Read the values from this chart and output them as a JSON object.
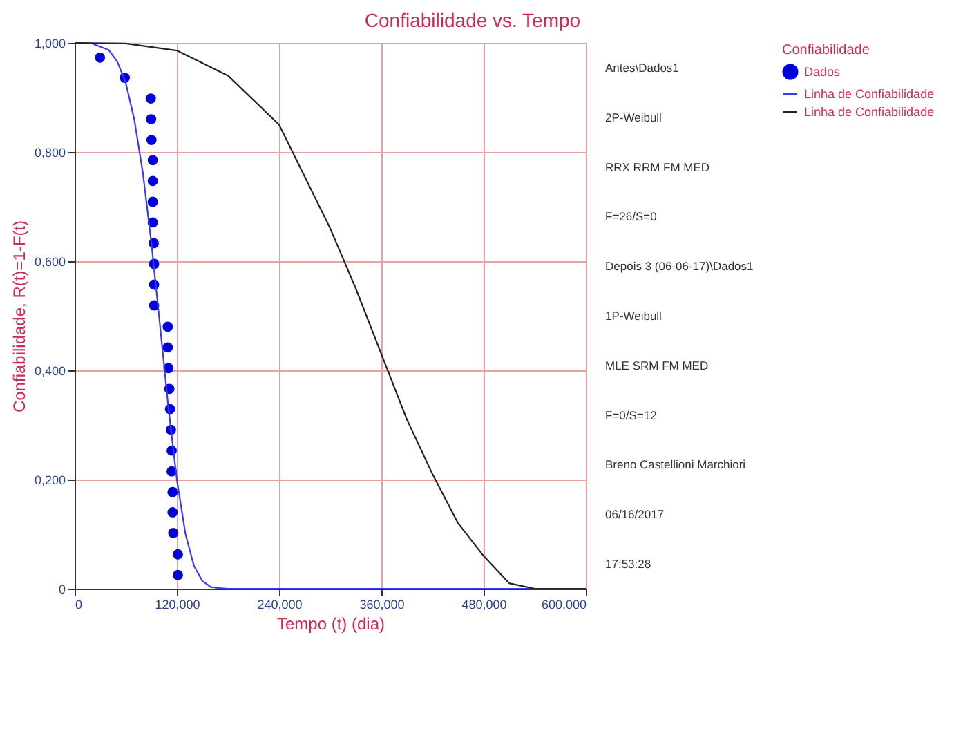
{
  "chart_data": {
    "type": "scatter",
    "title": "Confiabilidade vs. Tempo",
    "xlabel": "Tempo (t) (dia)",
    "ylabel": "Confiabilidade, R(t)=1-F(t)",
    "legend_title": "Confiabilidade",
    "legend": "right",
    "grid": true,
    "xlim": [
      0,
      600
    ],
    "xticks": [
      0,
      {
        "value": 120,
        "label": "120,000"
      },
      {
        "value": 240,
        "label": "240,000"
      },
      {
        "value": 360,
        "label": "360,000"
      },
      {
        "value": 480,
        "label": "480,000"
      },
      {
        "value": 600,
        "label": "600,000"
      }
    ],
    "ylim": [
      0,
      1
    ],
    "yticks": [
      0,
      {
        "value": 0.2,
        "label": "0,200"
      },
      {
        "value": 0.4,
        "label": "0,400"
      },
      {
        "value": 0.6,
        "label": "0,600"
      },
      {
        "value": 0.8,
        "label": "0,800"
      },
      {
        "value": 1,
        "label": "1,000"
      }
    ],
    "annotations": [
      "Antes\\Dados1",
      "2P-Weibull",
      "RRX RRM FM MED",
      "F=26/S=0",
      "Depois 3 (06-06-17)\\Dados1",
      "1P-Weibull",
      "MLE SRM FM MED",
      "F=0/S=12",
      "Breno Castellioni Marchiori",
      "06/16/2017",
      "17:53:28"
    ],
    "series": [
      {
        "name": "Dados",
        "marker": "circle",
        "color": "#0000dd",
        "x": [
          29.8,
          58.9,
          89.4,
          89.8,
          90.2,
          91.7,
          91.7,
          91.7,
          91.7,
          92.9,
          93.3,
          93.3,
          93.3,
          109.3,
          109.3,
          110.1,
          111.2,
          112,
          113.1,
          113.9,
          113.9,
          115,
          115,
          115.8,
          121.2,
          121.2
        ],
        "values": [
          0.973,
          0.936,
          0.898,
          0.86,
          0.822,
          0.785,
          0.747,
          0.709,
          0.671,
          0.633,
          0.595,
          0.557,
          0.519,
          0.48,
          0.442,
          0.404,
          0.366,
          0.329,
          0.291,
          0.253,
          0.215,
          0.177,
          0.14,
          0.102,
          0.063,
          0.025
        ]
      },
      {
        "name": "Linha de Confiabilidade",
        "type": "line",
        "marker": "none",
        "color": "#3a3af0",
        "x": [
          0,
          20,
          40,
          50,
          60,
          70,
          80,
          90,
          100,
          110,
          120,
          130,
          140,
          150,
          160,
          170,
          180,
          600
        ],
        "values": [
          1,
          0.999,
          0.987,
          0.966,
          0.927,
          0.86,
          0.763,
          0.635,
          0.486,
          0.333,
          0.2,
          0.101,
          0.042,
          0.014,
          0.003,
          0.001,
          0,
          0
        ]
      },
      {
        "name": "Linha de Confiabilidade",
        "type": "line",
        "marker": "none",
        "color": "#222222",
        "x": [
          0,
          60,
          120,
          180,
          240,
          300,
          330,
          360,
          390,
          420,
          450,
          480,
          510,
          540,
          600
        ],
        "values": [
          1,
          0.999,
          0.986,
          0.94,
          0.85,
          0.66,
          0.55,
          0.43,
          0.31,
          0.21,
          0.12,
          0.06,
          0.01,
          0,
          0
        ]
      }
    ]
  }
}
